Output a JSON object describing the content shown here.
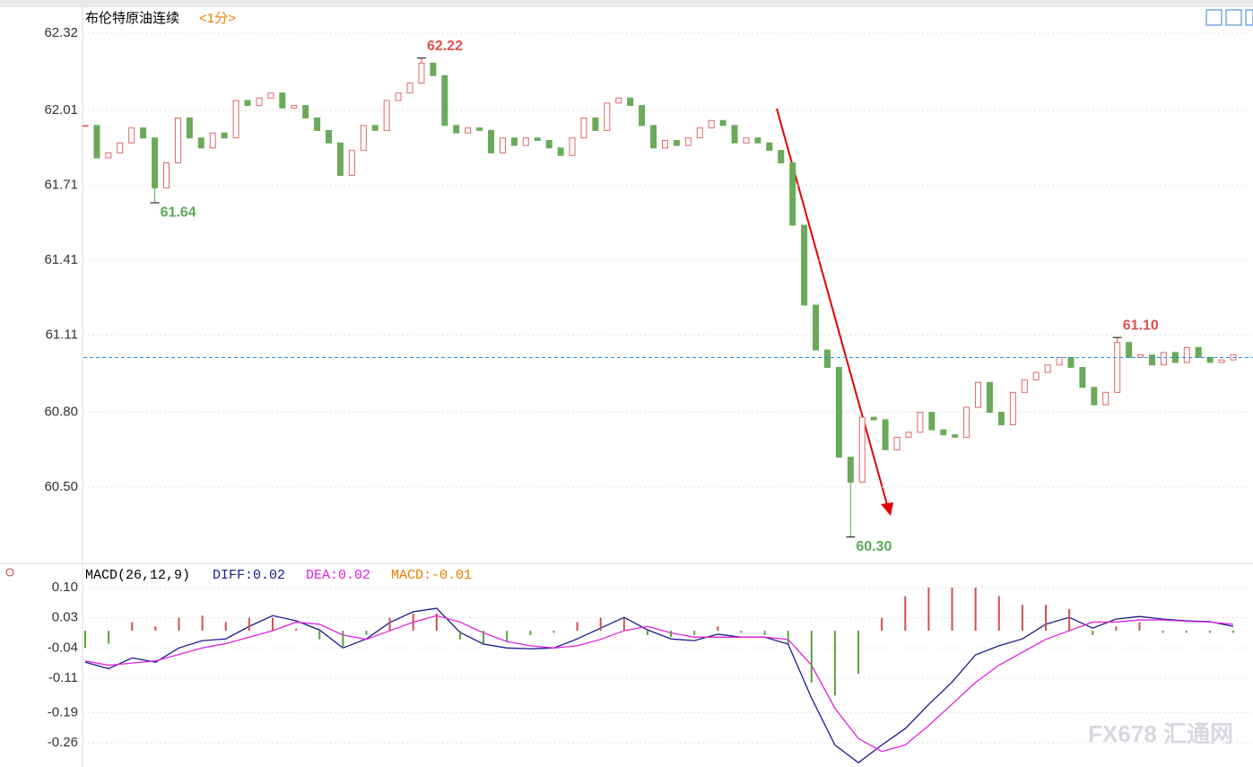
{
  "title": "布伦特原油连续",
  "period": "<1分>",
  "watermark": "FX678 汇通网",
  "chart_data": [
    {
      "type": "candlestick",
      "close": [
        61.95,
        61.82,
        61.84,
        61.88,
        61.94,
        61.9,
        61.7,
        61.8,
        61.98,
        61.9,
        61.86,
        61.92,
        61.9,
        62.05,
        62.03,
        62.06,
        62.08,
        62.02,
        62.03,
        61.98,
        61.93,
        61.88,
        61.75,
        61.85,
        61.95,
        61.93,
        62.05,
        62.08,
        62.12,
        62.2,
        62.15,
        61.95,
        61.92,
        61.94,
        61.93,
        61.84,
        61.9,
        61.87,
        61.9,
        61.89,
        61.86,
        61.83,
        61.9,
        61.98,
        61.93,
        62.04,
        62.06,
        62.03,
        61.95,
        61.86,
        61.89,
        61.87,
        61.9,
        61.94,
        61.97,
        61.95,
        61.88,
        61.9,
        61.88,
        61.85,
        61.8,
        61.55,
        61.23,
        61.05,
        60.98,
        60.62,
        60.52,
        60.78,
        60.77,
        60.65,
        60.7,
        60.72,
        60.8,
        60.73,
        60.71,
        60.7,
        60.82,
        60.92,
        60.8,
        60.75,
        60.88,
        60.93,
        60.96,
        60.99,
        61.02,
        60.98,
        60.9,
        60.83,
        60.88,
        61.08,
        61.02,
        61.03,
        60.99,
        61.04,
        61.0,
        61.06,
        61.02,
        61.0,
        61.01,
        61.03
      ],
      "up_color": "#e06666",
      "down_color": "#6aaa5a",
      "ylim": [
        60.198,
        62.417
      ],
      "yticks": [
        {
          "value": 60.5,
          "label": "60.50"
        },
        {
          "value": 60.8,
          "label": "60.80"
        },
        61.11,
        61.41,
        61.71,
        62.01,
        62.32
      ],
      "grid": true,
      "reference_line": 61.02,
      "annotations": [
        {
          "value": 62.22,
          "color": "#e05050"
        },
        {
          "value": 61.64,
          "color": "#5aaa5a"
        },
        {
          "value": 60.3,
          "label": "60.30",
          "color": "#5aaa5a"
        },
        {
          "value": 61.1,
          "label": "61.10",
          "color": "#e05050"
        }
      ]
    },
    {
      "type": "macd",
      "header": "MACD(26,12,9)",
      "series": [
        {
          "name": "DIFF:0.02",
          "color": "#1a1a8c",
          "values": [
            -0.073,
            -0.088,
            -0.063,
            -0.073,
            -0.04,
            -0.023,
            -0.019,
            0.01,
            0.035,
            0.023,
            0.002,
            -0.04,
            -0.019,
            0.019,
            0.044,
            0.052,
            -0.004,
            -0.031,
            -0.04,
            -0.042,
            -0.04,
            -0.019,
            0.006,
            0.031,
            0.002,
            -0.019,
            -0.023,
            -0.008,
            -0.015,
            -0.015,
            -0.031,
            -0.156,
            -0.265,
            -0.306,
            -0.265,
            -0.227,
            -0.171,
            -0.119,
            -0.056,
            -0.035,
            -0.019,
            0.015,
            0.031,
            0.006,
            0.027,
            0.033,
            0.027,
            0.023,
            0.021,
            0.01
          ]
        },
        {
          "name": "DEA:0.02",
          "color": "#e020e0",
          "values": [
            -0.07,
            -0.08,
            -0.075,
            -0.07,
            -0.055,
            -0.04,
            -0.03,
            -0.015,
            0.0,
            0.02,
            0.015,
            -0.01,
            -0.02,
            0.0,
            0.02,
            0.035,
            0.02,
            -0.005,
            -0.025,
            -0.035,
            -0.04,
            -0.035,
            -0.02,
            0.0,
            0.01,
            -0.005,
            -0.015,
            -0.015,
            -0.015,
            -0.015,
            -0.02,
            -0.08,
            -0.18,
            -0.25,
            -0.28,
            -0.265,
            -0.22,
            -0.17,
            -0.12,
            -0.08,
            -0.05,
            -0.02,
            0.0,
            0.02,
            0.02,
            0.025,
            0.025,
            0.022,
            0.02,
            0.015
          ]
        },
        {
          "name": "MACD:-0.01",
          "color": "#f07800",
          "values": [
            -0.04,
            -0.03,
            0.02,
            0.01,
            0.03,
            0.035,
            0.02,
            0.03,
            0.03,
            0.005,
            -0.02,
            -0.04,
            -0.01,
            0.03,
            0.04,
            0.04,
            -0.02,
            -0.03,
            -0.025,
            -0.01,
            -0.005,
            0.02,
            0.03,
            0.03,
            -0.01,
            -0.015,
            -0.01,
            0.01,
            -0.005,
            -0.01,
            -0.03,
            -0.12,
            -0.15,
            -0.1,
            0.03,
            0.08,
            0.1,
            0.1,
            0.1,
            0.08,
            0.06,
            0.06,
            0.05,
            -0.01,
            0.01,
            0.02,
            -0.005,
            -0.005,
            -0.005,
            -0.005
          ]
        }
      ],
      "bar_up_color": "#d05050",
      "bar_down_color": "#5aa040",
      "ylim": [
        -0.316,
        0.152
      ],
      "yticks": [
        -0.26,
        -0.19,
        -0.11,
        -0.04,
        0.03,
        {
          "value": 0.1,
          "label": "0.10"
        }
      ],
      "grid": true
    }
  ]
}
